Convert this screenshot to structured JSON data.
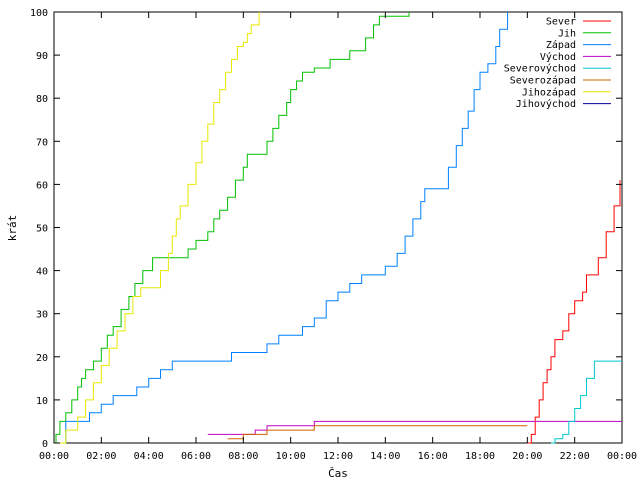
{
  "chart_data": {
    "type": "line",
    "title": "",
    "xlabel": "Čas",
    "ylabel": "krát",
    "xlim": [
      "00:00",
      "24:00"
    ],
    "ylim": [
      0,
      100
    ],
    "x_ticks": [
      "00:00",
      "02:00",
      "04:00",
      "06:00",
      "08:00",
      "10:00",
      "12:00",
      "14:00",
      "16:00",
      "18:00",
      "20:00",
      "22:00",
      "00:00"
    ],
    "y_ticks": [
      0,
      10,
      20,
      30,
      40,
      50,
      60,
      70,
      80,
      90,
      100
    ],
    "grid": false,
    "legend_position": "top-right",
    "series": [
      {
        "name": "Sever",
        "color": "#ff0000",
        "step": true,
        "points": [
          [
            "20:00",
            0
          ],
          [
            "20:10",
            2
          ],
          [
            "20:20",
            6
          ],
          [
            "20:30",
            10
          ],
          [
            "20:40",
            14
          ],
          [
            "20:50",
            17
          ],
          [
            "21:00",
            20
          ],
          [
            "21:10",
            24
          ],
          [
            "21:30",
            26
          ],
          [
            "21:45",
            30
          ],
          [
            "22:00",
            33
          ],
          [
            "22:20",
            35
          ],
          [
            "22:30",
            39
          ],
          [
            "22:50",
            39
          ],
          [
            "23:00",
            43
          ],
          [
            "23:20",
            49
          ],
          [
            "23:40",
            55
          ],
          [
            "23:55",
            61
          ]
        ]
      },
      {
        "name": "Jih",
        "color": "#00c000",
        "step": true,
        "points": [
          [
            "00:00",
            0
          ],
          [
            "00:05",
            2
          ],
          [
            "00:15",
            5
          ],
          [
            "00:30",
            7
          ],
          [
            "00:45",
            10
          ],
          [
            "01:00",
            13
          ],
          [
            "01:10",
            15
          ],
          [
            "01:20",
            17
          ],
          [
            "01:40",
            19
          ],
          [
            "02:00",
            22
          ],
          [
            "02:15",
            25
          ],
          [
            "02:30",
            27
          ],
          [
            "02:50",
            31
          ],
          [
            "03:10",
            34
          ],
          [
            "03:25",
            37
          ],
          [
            "03:45",
            40
          ],
          [
            "04:10",
            43
          ],
          [
            "05:00",
            43
          ],
          [
            "05:40",
            45
          ],
          [
            "06:00",
            47
          ],
          [
            "06:30",
            49
          ],
          [
            "06:45",
            52
          ],
          [
            "07:00",
            54
          ],
          [
            "07:20",
            57
          ],
          [
            "07:40",
            61
          ],
          [
            "08:00",
            64
          ],
          [
            "08:10",
            67
          ],
          [
            "08:45",
            67
          ],
          [
            "09:00",
            70
          ],
          [
            "09:15",
            73
          ],
          [
            "09:30",
            76
          ],
          [
            "09:50",
            79
          ],
          [
            "10:00",
            82
          ],
          [
            "10:15",
            84
          ],
          [
            "10:30",
            86
          ],
          [
            "11:00",
            87
          ],
          [
            "11:40",
            89
          ],
          [
            "12:30",
            91
          ],
          [
            "13:00",
            91
          ],
          [
            "13:10",
            94
          ],
          [
            "13:30",
            97
          ],
          [
            "13:45",
            99
          ],
          [
            "14:00",
            99
          ],
          [
            "15:00",
            100
          ]
        ]
      },
      {
        "name": "Západ",
        "color": "#0080ff",
        "step": true,
        "points": [
          [
            "00:00",
            0
          ],
          [
            "00:30",
            5
          ],
          [
            "01:30",
            7
          ],
          [
            "02:00",
            9
          ],
          [
            "02:30",
            11
          ],
          [
            "03:30",
            13
          ],
          [
            "04:00",
            15
          ],
          [
            "04:30",
            17
          ],
          [
            "05:00",
            19
          ],
          [
            "06:00",
            19
          ],
          [
            "07:00",
            19
          ],
          [
            "07:30",
            21
          ],
          [
            "08:30",
            21
          ],
          [
            "09:00",
            23
          ],
          [
            "09:30",
            25
          ],
          [
            "10:30",
            27
          ],
          [
            "11:00",
            29
          ],
          [
            "11:30",
            33
          ],
          [
            "12:00",
            35
          ],
          [
            "12:30",
            37
          ],
          [
            "13:00",
            39
          ],
          [
            "14:00",
            41
          ],
          [
            "14:30",
            44
          ],
          [
            "14:50",
            48
          ],
          [
            "15:10",
            52
          ],
          [
            "15:30",
            56
          ],
          [
            "15:40",
            59
          ],
          [
            "16:20",
            59
          ],
          [
            "16:40",
            64
          ],
          [
            "17:00",
            69
          ],
          [
            "17:15",
            73
          ],
          [
            "17:30",
            77
          ],
          [
            "17:45",
            82
          ],
          [
            "18:00",
            86
          ],
          [
            "18:20",
            88
          ],
          [
            "18:40",
            92
          ],
          [
            "18:50",
            96
          ],
          [
            "19:10",
            100
          ]
        ]
      },
      {
        "name": "Východ",
        "color": "#c000c0",
        "step": true,
        "points": [
          [
            "06:30",
            2
          ],
          [
            "08:00",
            2
          ],
          [
            "08:30",
            3
          ],
          [
            "09:00",
            4
          ],
          [
            "11:00",
            5
          ],
          [
            "24:00",
            5
          ]
        ]
      },
      {
        "name": "Severovýchod",
        "color": "#00c8d0",
        "step": true,
        "points": [
          [
            "21:00",
            0
          ],
          [
            "21:10",
            1
          ],
          [
            "21:30",
            2
          ],
          [
            "21:45",
            5
          ],
          [
            "22:00",
            8
          ],
          [
            "22:15",
            11
          ],
          [
            "22:30",
            15
          ],
          [
            "22:50",
            19
          ],
          [
            "24:00",
            19
          ]
        ]
      },
      {
        "name": "Severozápad",
        "color": "#d06000",
        "step": true,
        "points": [
          [
            "07:20",
            1
          ],
          [
            "08:00",
            2
          ],
          [
            "09:00",
            3
          ],
          [
            "11:00",
            4
          ],
          [
            "20:00",
            4
          ]
        ]
      },
      {
        "name": "Jihozápad",
        "color": "#e8e800",
        "step": true,
        "points": [
          [
            "00:00",
            0
          ],
          [
            "00:30",
            3
          ],
          [
            "01:00",
            6
          ],
          [
            "01:20",
            10
          ],
          [
            "01:40",
            14
          ],
          [
            "02:00",
            18
          ],
          [
            "02:20",
            22
          ],
          [
            "02:40",
            26
          ],
          [
            "03:00",
            30
          ],
          [
            "03:20",
            34
          ],
          [
            "03:40",
            36
          ],
          [
            "04:00",
            36
          ],
          [
            "04:30",
            40
          ],
          [
            "04:50",
            44
          ],
          [
            "05:00",
            48
          ],
          [
            "05:10",
            52
          ],
          [
            "05:20",
            55
          ],
          [
            "05:40",
            60
          ],
          [
            "06:00",
            65
          ],
          [
            "06:15",
            70
          ],
          [
            "06:30",
            74
          ],
          [
            "06:45",
            79
          ],
          [
            "07:00",
            82
          ],
          [
            "07:15",
            86
          ],
          [
            "07:30",
            89
          ],
          [
            "07:45",
            92
          ],
          [
            "08:00",
            93
          ],
          [
            "08:10",
            95
          ],
          [
            "08:20",
            97
          ],
          [
            "08:40",
            100
          ]
        ]
      },
      {
        "name": "Jihovýchod",
        "color": "#0000a0",
        "step": true,
        "points": []
      }
    ]
  }
}
